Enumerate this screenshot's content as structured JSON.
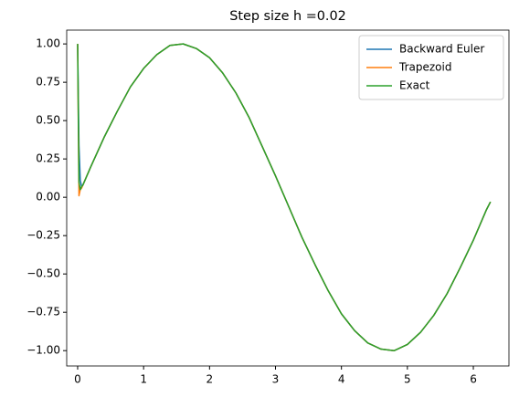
{
  "chart_data": {
    "type": "line",
    "title": "Step size h =0.02",
    "x": [
      0,
      0.02,
      0.04,
      0.06,
      0.08,
      0.2,
      0.4,
      0.6,
      0.8,
      1.0,
      1.2,
      1.4,
      1.6,
      1.8,
      2.0,
      2.2,
      2.4,
      2.6,
      2.8,
      3.0,
      3.2,
      3.4,
      3.6,
      3.8,
      4.0,
      4.2,
      4.4,
      4.6,
      4.8,
      5.0,
      5.2,
      5.4,
      5.6,
      5.8,
      6.0,
      6.2,
      6.26
    ],
    "series": [
      {
        "name": "Backward Euler",
        "color": "#1f77b4",
        "values": [
          1,
          0.34,
          0.11,
          0.07,
          0.08,
          0.2,
          0.39,
          0.56,
          0.72,
          0.84,
          0.93,
          0.99,
          1.0,
          0.97,
          0.91,
          0.81,
          0.68,
          0.52,
          0.33,
          0.14,
          -0.06,
          -0.26,
          -0.44,
          -0.61,
          -0.76,
          -0.87,
          -0.95,
          -0.99,
          -1.0,
          -0.96,
          -0.88,
          -0.77,
          -0.63,
          -0.46,
          -0.28,
          -0.08,
          -0.03
        ]
      },
      {
        "name": "Trapezoid",
        "color": "#ff7f0e",
        "values": [
          1,
          0.01,
          0.05,
          0.06,
          0.08,
          0.2,
          0.39,
          0.56,
          0.72,
          0.84,
          0.93,
          0.99,
          1.0,
          0.97,
          0.91,
          0.81,
          0.68,
          0.52,
          0.33,
          0.14,
          -0.06,
          -0.26,
          -0.44,
          -0.61,
          -0.76,
          -0.87,
          -0.95,
          -0.99,
          -1.0,
          -0.96,
          -0.88,
          -0.77,
          -0.63,
          -0.46,
          -0.28,
          -0.08,
          -0.03
        ]
      },
      {
        "name": "Exact",
        "color": "#2ca02c",
        "values": [
          1,
          0.1,
          0.05,
          0.07,
          0.08,
          0.2,
          0.39,
          0.56,
          0.72,
          0.84,
          0.93,
          0.99,
          1.0,
          0.97,
          0.91,
          0.81,
          0.68,
          0.52,
          0.33,
          0.14,
          -0.06,
          -0.26,
          -0.44,
          -0.61,
          -0.76,
          -0.87,
          -0.95,
          -0.99,
          -1.0,
          -0.96,
          -0.88,
          -0.77,
          -0.63,
          -0.46,
          -0.28,
          -0.08,
          -0.03
        ]
      }
    ],
    "xlim": [
      -0.166,
      6.54
    ],
    "ylim": [
      -1.1,
      1.09
    ],
    "xticks": [
      0,
      1,
      2,
      3,
      4,
      5,
      6
    ],
    "yticks": [
      {
        "value": -1,
        "label": "−1.00"
      },
      {
        "value": -0.75,
        "label": "−0.75"
      },
      {
        "value": -0.5,
        "label": "−0.50"
      },
      {
        "value": -0.25,
        "label": "−0.25"
      },
      {
        "value": 0,
        "label": "0.00"
      },
      {
        "value": 0.25,
        "label": "0.25"
      },
      {
        "value": 0.5,
        "label": "0.50"
      },
      {
        "value": 0.75,
        "label": "0.75"
      },
      {
        "value": 1,
        "label": "1.00"
      }
    ],
    "grid": false,
    "legend": "upper right"
  }
}
